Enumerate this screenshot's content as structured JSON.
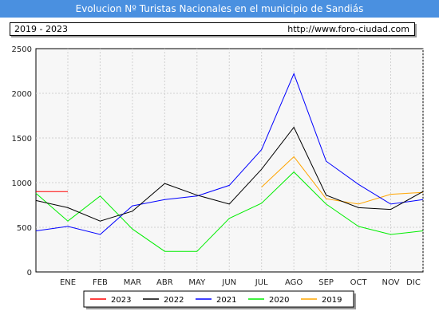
{
  "title": "Evolucion Nº Turistas Nacionales en el municipio de Sandiás",
  "period_label": "2019 - 2023",
  "source_url": "http://www.foro-ciudad.com",
  "chart_data": {
    "type": "line",
    "categories": [
      "ENE",
      "FEB",
      "MAR",
      "ABR",
      "MAY",
      "JUN",
      "JUL",
      "AGO",
      "SEP",
      "OCT",
      "NOV",
      "DIC"
    ],
    "ylim": [
      0,
      2500
    ],
    "yticks": [
      0,
      500,
      1000,
      1500,
      2000,
      2500
    ],
    "grid": true,
    "legend_position": "bottom",
    "series": [
      {
        "name": "2023",
        "color": "#ff0000",
        "values": [
          900,
          null,
          null,
          null,
          null,
          null,
          null,
          null,
          null,
          null,
          null,
          null
        ],
        "lead_in": 900
      },
      {
        "name": "2022",
        "color": "#000000",
        "values": [
          720,
          570,
          680,
          990,
          860,
          760,
          1150,
          1620,
          860,
          720,
          700,
          900
        ],
        "lead_in": 800
      },
      {
        "name": "2021",
        "color": "#0000ff",
        "values": [
          510,
          420,
          740,
          810,
          850,
          970,
          1370,
          2220,
          1240,
          980,
          760,
          810
        ],
        "lead_in": 460
      },
      {
        "name": "2020",
        "color": "#00ee00",
        "values": [
          570,
          850,
          480,
          230,
          230,
          600,
          770,
          1120,
          760,
          510,
          420,
          460
        ],
        "lead_in": 880
      },
      {
        "name": "2019",
        "color": "#ffa500",
        "values": [
          null,
          null,
          null,
          null,
          null,
          null,
          950,
          1290,
          820,
          760,
          870,
          890
        ],
        "lead_in": null
      }
    ]
  }
}
